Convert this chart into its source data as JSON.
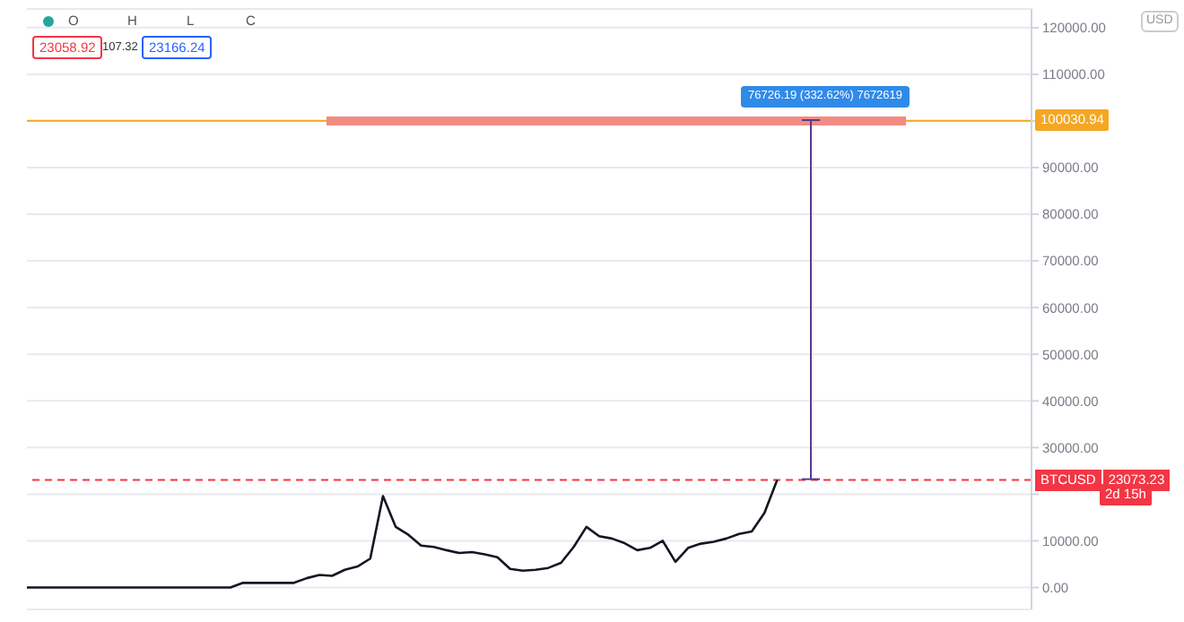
{
  "chart_data": {
    "type": "line",
    "categories": [
      null,
      null,
      null,
      null,
      null,
      null,
      null,
      null,
      null,
      null,
      null,
      null,
      null,
      null,
      null,
      null,
      null,
      null,
      null,
      null,
      null,
      null,
      null,
      null,
      null,
      null,
      null,
      null,
      null,
      null,
      null,
      null,
      null,
      null,
      null,
      null,
      null,
      null,
      null,
      null,
      null,
      null,
      null,
      null,
      null,
      null,
      null,
      null,
      null,
      null,
      null,
      null,
      null,
      null,
      null,
      null,
      null,
      null,
      null,
      null,
      null,
      null,
      null,
      null,
      null,
      null,
      null,
      null,
      null,
      null,
      null,
      null,
      null,
      null,
      null,
      null,
      null,
      null,
      null,
      null
    ],
    "series": [
      {
        "color": "#131722",
        "values": [
          0,
          0,
          0,
          0,
          0,
          0,
          0,
          0,
          0,
          0,
          0,
          0,
          0,
          0,
          0,
          0,
          0,
          1000,
          1000,
          1000,
          1000,
          1000,
          2000,
          2700,
          2500,
          3800,
          4500,
          6200,
          19600,
          13000,
          11300,
          9000,
          8700,
          8000,
          7400,
          7600,
          7100,
          6500,
          4000,
          3600,
          3800,
          4200,
          5300,
          8700,
          13000,
          11000,
          10500,
          9500,
          8000,
          8500,
          10000,
          5500,
          8500,
          9400,
          9800,
          10500,
          11500,
          12000,
          16000,
          23073.23,
          null,
          null,
          null,
          null,
          null,
          null,
          null,
          null,
          null,
          null,
          null,
          null,
          null,
          null,
          null,
          null,
          null,
          null,
          null,
          null
        ]
      }
    ],
    "ylim": [
      -4700,
      124000
    ],
    "yticks": [
      {
        "value": 0,
        "label": "0.00"
      },
      {
        "value": 10000,
        "label": "10000.00"
      },
      {
        "value": 20000,
        "label": null
      },
      {
        "value": 30000,
        "label": "30000.00"
      },
      {
        "value": 40000,
        "label": "40000.00"
      },
      {
        "value": 50000,
        "label": "50000.00"
      },
      {
        "value": 60000,
        "label": "60000.00"
      },
      {
        "value": 70000,
        "label": "70000.00"
      },
      {
        "value": 80000,
        "label": "80000.00"
      },
      {
        "value": 90000,
        "label": "90000.00"
      },
      {
        "value": 100000,
        "label": null
      },
      {
        "value": 110000,
        "label": "110000.00"
      },
      {
        "value": 120000,
        "label": "120000.00"
      }
    ],
    "tick_labels": "y",
    "grid": "y",
    "marker": "none",
    "line_style": "solid",
    "ref_lines": [
      {
        "axis": "y",
        "value": 100030.94,
        "label": "100030.94",
        "color": "#f5a623",
        "line_style": "solid"
      },
      {
        "axis": "y",
        "value": 23073.23,
        "label": "BTCUSD",
        "color": "#f23645",
        "line_style": "dashed"
      }
    ],
    "annotations": [
      "O",
      "H",
      "L",
      "C",
      "23058.92",
      "107.32",
      "23166.24",
      "USD",
      "2d 15h",
      "76726.19 (332.62%) 7672619",
      "23073.23"
    ]
  }
}
